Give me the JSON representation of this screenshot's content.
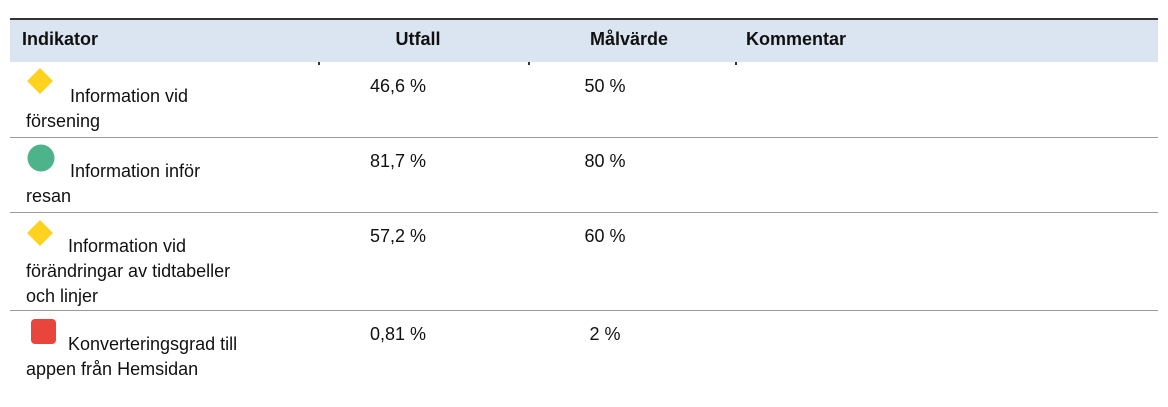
{
  "table": {
    "header": [
      "Indikator",
      "Utfall",
      "Målvärde",
      "Kommentar"
    ],
    "rows": [
      {
        "label": [
          "Information vid",
          "försening"
        ],
        "utfall": "46,6 %",
        "malvarde": "50 %"
      },
      {
        "label": [
          "Information inför",
          "resan"
        ],
        "utfall": "81,7 %",
        "malvarde": "80 %"
      },
      {
        "label": [
          "Information vid",
          "förändringar av tidtabeller",
          "och linjer"
        ],
        "utfall": "57,2 %",
        "malvarde": "60 %"
      },
      {
        "label": [
          "Konverteringsgrad till",
          "appen från Hemsidan"
        ],
        "utfall": "0,81 %",
        "malvarde": "2 %"
      }
    ]
  }
}
